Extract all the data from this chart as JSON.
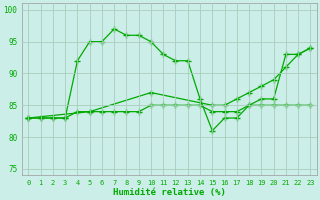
{
  "xlabel": "Humidité relative (%)",
  "bg_color": "#cceee8",
  "grid_color": "#aaccbb",
  "line_color": "#00aa00",
  "xlim": [
    -0.5,
    23.5
  ],
  "ylim": [
    74,
    101
  ],
  "yticks": [
    75,
    80,
    85,
    90,
    95,
    100
  ],
  "xticks": [
    0,
    1,
    2,
    3,
    4,
    5,
    6,
    7,
    8,
    9,
    10,
    11,
    12,
    13,
    14,
    15,
    16,
    17,
    18,
    19,
    20,
    21,
    22,
    23
  ],
  "line1_x": [
    0,
    1,
    2,
    3,
    4,
    5,
    6,
    7,
    8,
    9,
    10,
    11,
    12,
    13,
    14,
    15,
    16,
    17,
    18,
    19,
    20,
    21,
    22,
    23
  ],
  "line1_y": [
    83,
    83,
    83,
    83,
    92,
    95,
    95,
    97,
    96,
    96,
    95,
    93,
    92,
    92,
    86,
    81,
    83,
    83,
    85,
    86,
    86,
    93,
    93,
    94
  ],
  "line2_x": [
    0,
    1,
    2,
    3,
    4,
    5,
    6,
    7,
    8,
    9,
    10,
    11,
    12,
    13,
    14,
    15,
    16,
    17,
    18,
    19,
    20,
    21,
    22,
    23
  ],
  "line2_y": [
    83,
    83,
    83,
    83,
    84,
    84,
    84,
    84,
    84,
    84,
    85,
    85,
    85,
    85,
    85,
    84,
    84,
    84,
    85,
    85,
    85,
    85,
    85,
    85
  ],
  "line3_x": [
    0,
    5,
    10,
    15,
    16,
    17,
    18,
    19,
    20,
    21,
    22,
    23
  ],
  "line3_y": [
    83,
    84,
    87,
    85,
    85,
    86,
    87,
    88,
    89,
    91,
    93,
    94
  ]
}
